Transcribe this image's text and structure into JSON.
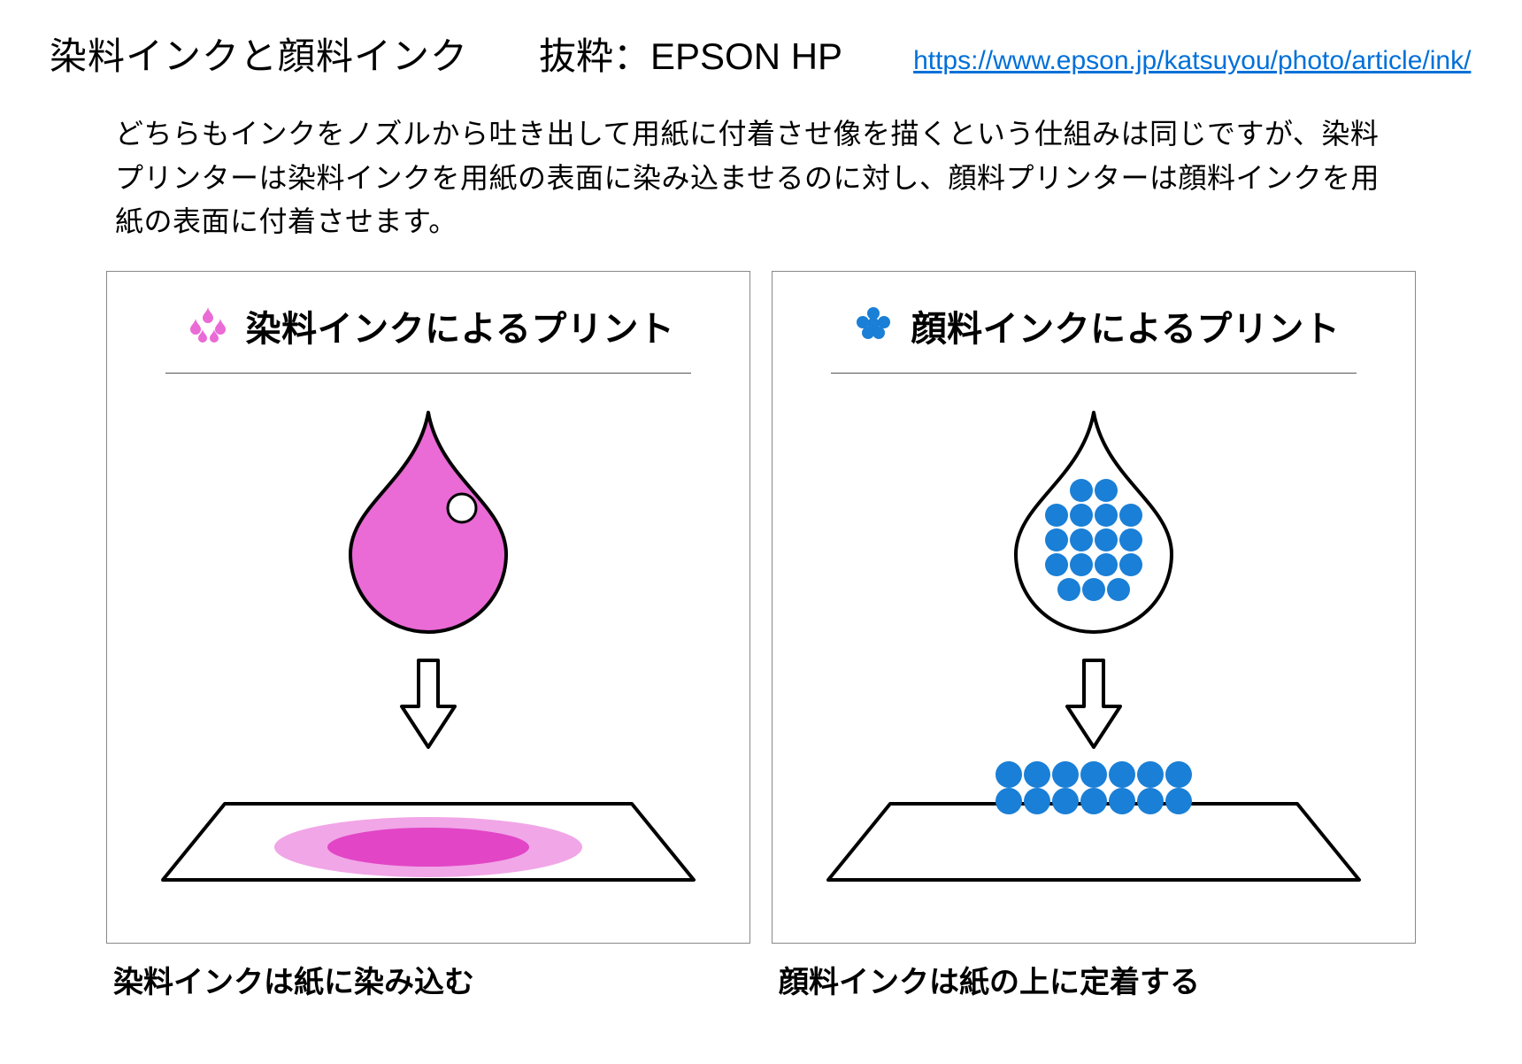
{
  "header": {
    "title": "染料インクと顔料インク",
    "source_label": "抜粋：EPSON HP",
    "link_text": "https://www.epson.jp/katsuyou/photo/article/ink/",
    "link_color": "#0070d8"
  },
  "description": "どちらもインクをノズルから吐き出して用紙に付着させ像を描くという仕組みは同じですが、染料プリンターは染料インクを用紙の表面に染み込ませるのに対し、顔料プリンターは顔料インクを用紙の表面に付着させます。",
  "panels": {
    "dye": {
      "title": "染料インクによるプリント",
      "caption": "染料インクは紙に染み込む",
      "icon_color": "#ea6ad6",
      "drop_fill": "#ea6ad6",
      "drop_stroke": "#000000",
      "drop_stroke_width": 4,
      "highlight_fill": "#ffffff",
      "highlight_stroke": "#000000",
      "arrow_stroke": "#000000",
      "arrow_fill": "#ffffff",
      "paper_stroke": "#000000",
      "stain_outer": "#f1a6e7",
      "stain_inner": "#e245c6",
      "background": "#ffffff"
    },
    "pigment": {
      "title": "顔料インクによるプリント",
      "caption": "顔料インクは紙の上に定着する",
      "icon_color": "#1a7fd6",
      "drop_fill": "#ffffff",
      "drop_stroke": "#000000",
      "drop_stroke_width": 4,
      "particle_fill": "#1a7fd6",
      "particle_radius": 13,
      "arrow_stroke": "#000000",
      "arrow_fill": "#ffffff",
      "paper_stroke": "#000000",
      "background": "#ffffff",
      "paper_particle_fill": "#1a7fd6",
      "paper_particle_radius": 15
    }
  },
  "layout": {
    "panel_border_color": "#888888",
    "hr_color": "#555555",
    "title_fontsize": 42,
    "panel_title_fontsize": 40,
    "caption_fontsize": 34,
    "description_fontsize": 32
  }
}
